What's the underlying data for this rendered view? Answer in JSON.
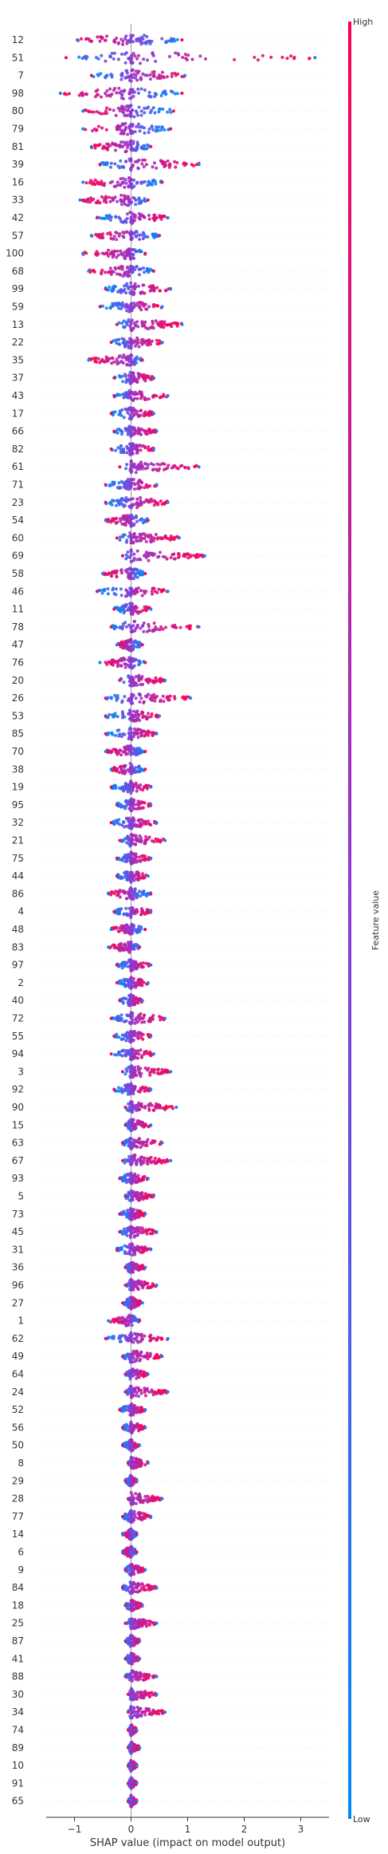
{
  "chart_data": {
    "type": "scatter",
    "subtype": "shap-beeswarm-summary",
    "xlabel": "SHAP value (impact on model output)",
    "xlim": [
      -1.5,
      3.5
    ],
    "xticks": [
      -1,
      0,
      1,
      2,
      3
    ],
    "colorbar": {
      "title": "Feature value",
      "high_label": "High",
      "low_label": "Low",
      "high_color": "#ff0052",
      "low_color": "#008bfb"
    },
    "features": [
      {
        "name": "12",
        "min": -0.95,
        "max": 0.9
      },
      {
        "name": "51",
        "min": -1.15,
        "max": 3.25
      },
      {
        "name": "7",
        "min": -0.7,
        "max": 0.95
      },
      {
        "name": "98",
        "min": -1.25,
        "max": 0.9
      },
      {
        "name": "80",
        "min": -0.85,
        "max": 0.75
      },
      {
        "name": "79",
        "min": -0.85,
        "max": 0.7
      },
      {
        "name": "81",
        "min": -0.7,
        "max": 0.35
      },
      {
        "name": "39",
        "min": -0.55,
        "max": 1.2
      },
      {
        "name": "16",
        "min": -0.85,
        "max": 0.55
      },
      {
        "name": "33",
        "min": -0.9,
        "max": 0.3
      },
      {
        "name": "42",
        "min": -0.6,
        "max": 0.65
      },
      {
        "name": "57",
        "min": -0.7,
        "max": 0.5
      },
      {
        "name": "100",
        "min": -0.85,
        "max": 0.25
      },
      {
        "name": "68",
        "min": -0.75,
        "max": 0.4
      },
      {
        "name": "99",
        "min": -0.45,
        "max": 0.7
      },
      {
        "name": "59",
        "min": -0.55,
        "max": 0.55
      },
      {
        "name": "13",
        "min": -0.25,
        "max": 0.9
      },
      {
        "name": "22",
        "min": -0.35,
        "max": 0.55
      },
      {
        "name": "35",
        "min": -0.75,
        "max": 0.2
      },
      {
        "name": "37",
        "min": -0.3,
        "max": 0.4
      },
      {
        "name": "43",
        "min": -0.3,
        "max": 0.65
      },
      {
        "name": "17",
        "min": -0.35,
        "max": 0.4
      },
      {
        "name": "66",
        "min": -0.3,
        "max": 0.45
      },
      {
        "name": "82",
        "min": -0.35,
        "max": 0.4
      },
      {
        "name": "61",
        "min": -0.2,
        "max": 1.2
      },
      {
        "name": "71",
        "min": -0.45,
        "max": 0.45
      },
      {
        "name": "23",
        "min": -0.45,
        "max": 0.65
      },
      {
        "name": "54",
        "min": -0.45,
        "max": 0.3
      },
      {
        "name": "60",
        "min": -0.25,
        "max": 0.85
      },
      {
        "name": "69",
        "min": -0.15,
        "max": 1.3
      },
      {
        "name": "58",
        "min": -0.5,
        "max": 0.25
      },
      {
        "name": "46",
        "min": -0.6,
        "max": 0.65
      },
      {
        "name": "11",
        "min": -0.3,
        "max": 0.35
      },
      {
        "name": "78",
        "min": -0.35,
        "max": 1.2
      },
      {
        "name": "47",
        "min": -0.25,
        "max": 0.2
      },
      {
        "name": "76",
        "min": -0.55,
        "max": 0.25
      },
      {
        "name": "20",
        "min": -0.2,
        "max": 0.6
      },
      {
        "name": "26",
        "min": -0.45,
        "max": 1.05
      },
      {
        "name": "53",
        "min": -0.45,
        "max": 0.5
      },
      {
        "name": "85",
        "min": -0.45,
        "max": 0.45
      },
      {
        "name": "70",
        "min": -0.45,
        "max": 0.25
      },
      {
        "name": "38",
        "min": -0.35,
        "max": 0.25
      },
      {
        "name": "19",
        "min": -0.35,
        "max": 0.35
      },
      {
        "name": "95",
        "min": -0.25,
        "max": 0.35
      },
      {
        "name": "32",
        "min": -0.35,
        "max": 0.45
      },
      {
        "name": "21",
        "min": -0.2,
        "max": 0.6
      },
      {
        "name": "75",
        "min": -0.25,
        "max": 0.35
      },
      {
        "name": "44",
        "min": -0.25,
        "max": 0.3
      },
      {
        "name": "86",
        "min": -0.4,
        "max": 0.35
      },
      {
        "name": "4",
        "min": -0.3,
        "max": 0.35
      },
      {
        "name": "48",
        "min": -0.35,
        "max": 0.25
      },
      {
        "name": "83",
        "min": -0.4,
        "max": 0.15
      },
      {
        "name": "97",
        "min": -0.25,
        "max": 0.35
      },
      {
        "name": "2",
        "min": -0.25,
        "max": 0.3
      },
      {
        "name": "40",
        "min": -0.2,
        "max": 0.2
      },
      {
        "name": "72",
        "min": -0.35,
        "max": 0.6
      },
      {
        "name": "55",
        "min": -0.3,
        "max": 0.35
      },
      {
        "name": "94",
        "min": -0.35,
        "max": 0.4
      },
      {
        "name": "3",
        "min": -0.15,
        "max": 0.7
      },
      {
        "name": "92",
        "min": -0.3,
        "max": 0.35
      },
      {
        "name": "90",
        "min": -0.1,
        "max": 0.8
      },
      {
        "name": "15",
        "min": -0.1,
        "max": 0.35
      },
      {
        "name": "63",
        "min": -0.15,
        "max": 0.55
      },
      {
        "name": "67",
        "min": -0.15,
        "max": 0.7
      },
      {
        "name": "93",
        "min": -0.2,
        "max": 0.3
      },
      {
        "name": "5",
        "min": -0.1,
        "max": 0.4
      },
      {
        "name": "73",
        "min": -0.2,
        "max": 0.25
      },
      {
        "name": "45",
        "min": -0.2,
        "max": 0.45
      },
      {
        "name": "31",
        "min": -0.25,
        "max": 0.35
      },
      {
        "name": "36",
        "min": -0.1,
        "max": 0.25
      },
      {
        "name": "96",
        "min": -0.1,
        "max": 0.45
      },
      {
        "name": "27",
        "min": -0.15,
        "max": 0.2
      },
      {
        "name": "1",
        "min": -0.4,
        "max": 0.15
      },
      {
        "name": "62",
        "min": -0.45,
        "max": 0.65
      },
      {
        "name": "49",
        "min": -0.15,
        "max": 0.55
      },
      {
        "name": "64",
        "min": -0.1,
        "max": 0.3
      },
      {
        "name": "24",
        "min": -0.1,
        "max": 0.65
      },
      {
        "name": "52",
        "min": -0.2,
        "max": 0.25
      },
      {
        "name": "56",
        "min": -0.15,
        "max": 0.25
      },
      {
        "name": "50",
        "min": -0.15,
        "max": 0.15
      },
      {
        "name": "8",
        "min": -0.05,
        "max": 0.3
      },
      {
        "name": "29",
        "min": -0.1,
        "max": 0.1
      },
      {
        "name": "28",
        "min": -0.05,
        "max": 0.55
      },
      {
        "name": "77",
        "min": -0.15,
        "max": 0.35
      },
      {
        "name": "14",
        "min": -0.15,
        "max": 0.1
      },
      {
        "name": "6",
        "min": -0.15,
        "max": 0.1
      },
      {
        "name": "9",
        "min": -0.1,
        "max": 0.25
      },
      {
        "name": "84",
        "min": -0.15,
        "max": 0.45
      },
      {
        "name": "18",
        "min": -0.1,
        "max": 0.2
      },
      {
        "name": "25",
        "min": -0.1,
        "max": 0.45
      },
      {
        "name": "87",
        "min": -0.1,
        "max": 0.15
      },
      {
        "name": "41",
        "min": -0.1,
        "max": 0.15
      },
      {
        "name": "88",
        "min": -0.1,
        "max": 0.45
      },
      {
        "name": "30",
        "min": -0.05,
        "max": 0.45
      },
      {
        "name": "34",
        "min": -0.05,
        "max": 0.6
      },
      {
        "name": "74",
        "min": -0.05,
        "max": 0.1
      },
      {
        "name": "89",
        "min": -0.05,
        "max": 0.15
      },
      {
        "name": "10",
        "min": -0.05,
        "max": 0.1
      },
      {
        "name": "91",
        "min": -0.05,
        "max": 0.1
      },
      {
        "name": "65",
        "min": -0.05,
        "max": 0.1
      }
    ]
  }
}
